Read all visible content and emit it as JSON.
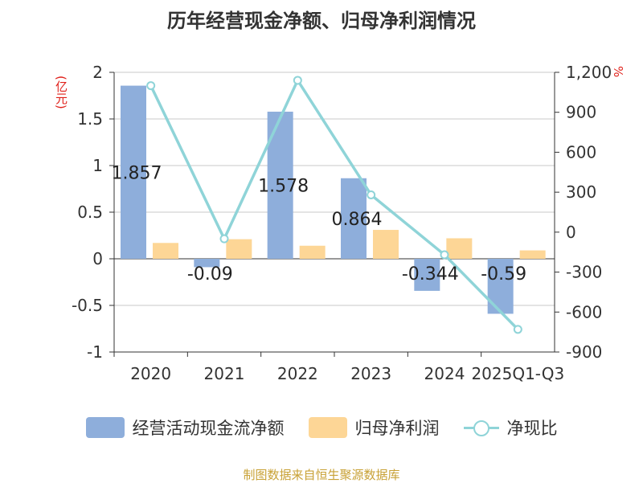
{
  "title": "历年经营现金净额、归母净利润情况",
  "source": "制图数据来自恒生聚源数据库",
  "chart_data": {
    "type": "bar",
    "title": "历年经营现金净额、归母净利润情况",
    "categories": [
      "2020",
      "2021",
      "2022",
      "2023",
      "2024",
      "2025Q1-Q3"
    ],
    "y_left": {
      "unit": "(亿元)",
      "ylim": [
        -1,
        2
      ],
      "ticks": [
        "2",
        "1.5",
        "1",
        "0.5",
        "0",
        "-0.5",
        "-1"
      ]
    },
    "y_right": {
      "unit": "%",
      "ylim": [
        -900,
        1200
      ],
      "ticks": [
        "1,200",
        "900",
        "600",
        "300",
        "0",
        "-300",
        "-600",
        "-900"
      ]
    },
    "series": [
      {
        "name": "经营活动现金流净额",
        "type": "bar",
        "axis": "left",
        "color": "#8eaedb",
        "values": [
          1.857,
          -0.09,
          1.578,
          0.864,
          -0.344,
          -0.59
        ],
        "labels": [
          "1.857",
          "-0.09",
          "1.578",
          "0.864",
          "-0.344",
          "-0.59"
        ]
      },
      {
        "name": "归母净利润",
        "type": "bar",
        "axis": "left",
        "color": "#fdd696",
        "values": [
          0.17,
          0.21,
          0.14,
          0.31,
          0.22,
          0.09
        ]
      },
      {
        "name": "净现比",
        "type": "line",
        "axis": "right",
        "color": "#8fd4d8",
        "values": [
          1100,
          -50,
          1140,
          280,
          -170,
          -730
        ]
      }
    ],
    "grid": true,
    "legend_position": "bottom"
  }
}
